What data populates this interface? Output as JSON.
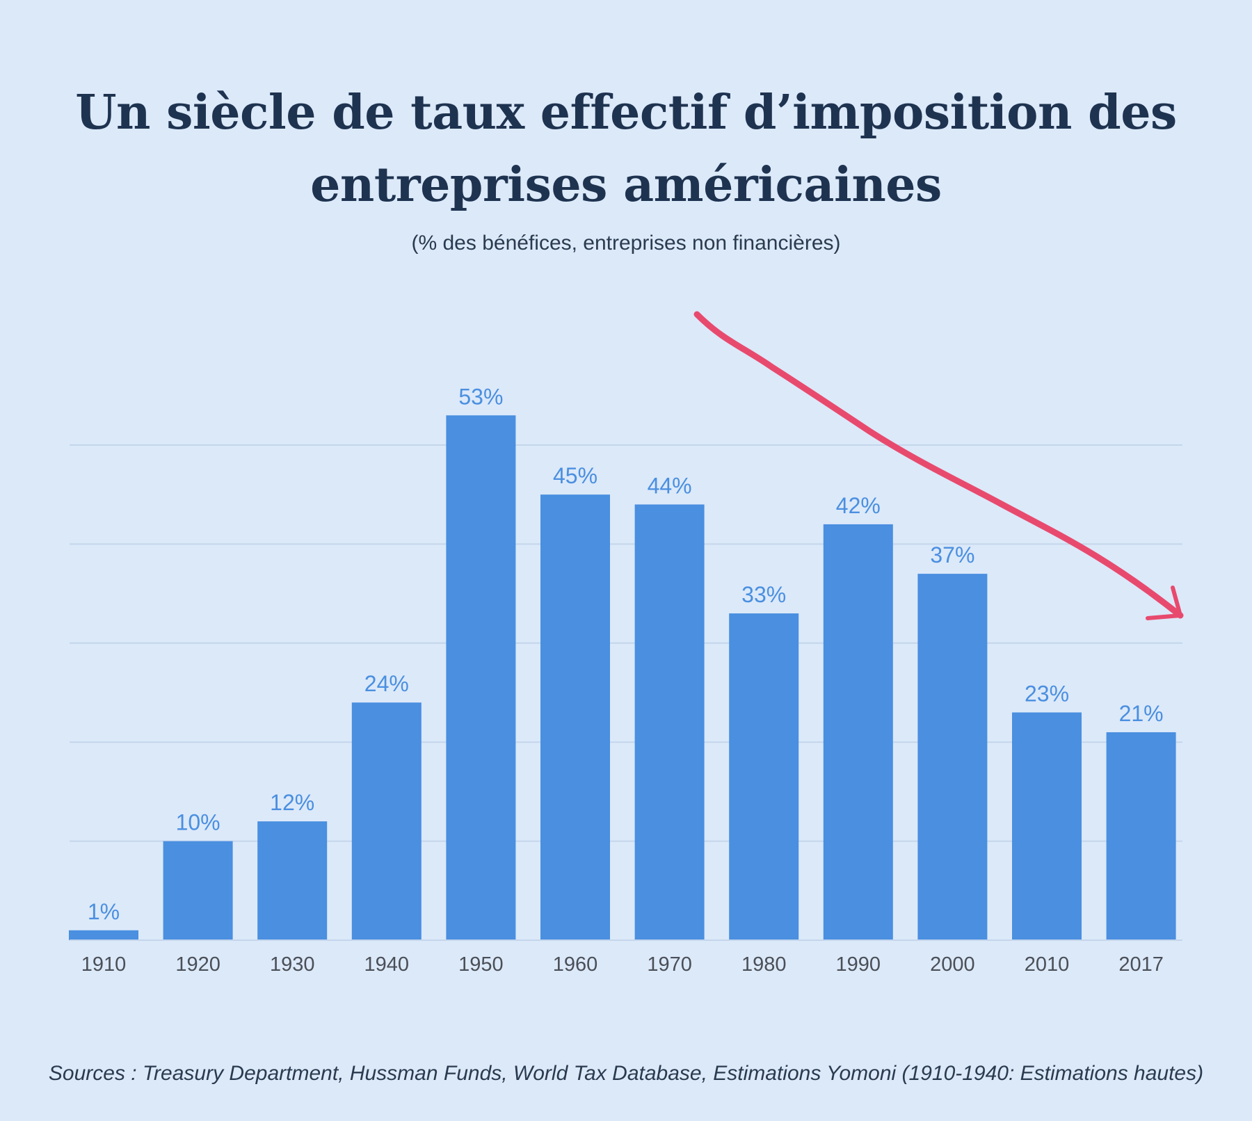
{
  "title": "Un siècle de taux effectif d’imposition des entreprises américaines",
  "subtitle": "(% des bénéfices, entreprises non financières)",
  "source": "Sources : Treasury Department, Hussman Funds, World Tax Database, Estimations Yomoni (1910-1940: Estimations hautes)",
  "colors": {
    "background": "#dce9f9",
    "bar": "#4a8fe0",
    "label": "#4a8fe0",
    "title": "#1e3350",
    "arrow": "#e84a6e",
    "grid": "#c4d6ec"
  },
  "chart_data": {
    "type": "bar",
    "title": "Un siècle de taux effectif d’imposition des entreprises américaines",
    "subtitle": "(% des bénéfices, entreprises non financières)",
    "xlabel": "",
    "ylabel": "",
    "ylim": [
      0,
      60
    ],
    "grid": true,
    "categories": [
      "1910",
      "1920",
      "1930",
      "1940",
      "1950",
      "1960",
      "1970",
      "1980",
      "1990",
      "2000",
      "2010",
      "2017"
    ],
    "values": [
      1,
      10,
      12,
      24,
      53,
      45,
      44,
      33,
      42,
      37,
      23,
      21
    ],
    "data_labels": [
      "1%",
      "10%",
      "12%",
      "24%",
      "53%",
      "45%",
      "44%",
      "33%",
      "42%",
      "37%",
      "23%",
      "21%"
    ],
    "annotations": [
      "downward-trend-arrow"
    ]
  }
}
